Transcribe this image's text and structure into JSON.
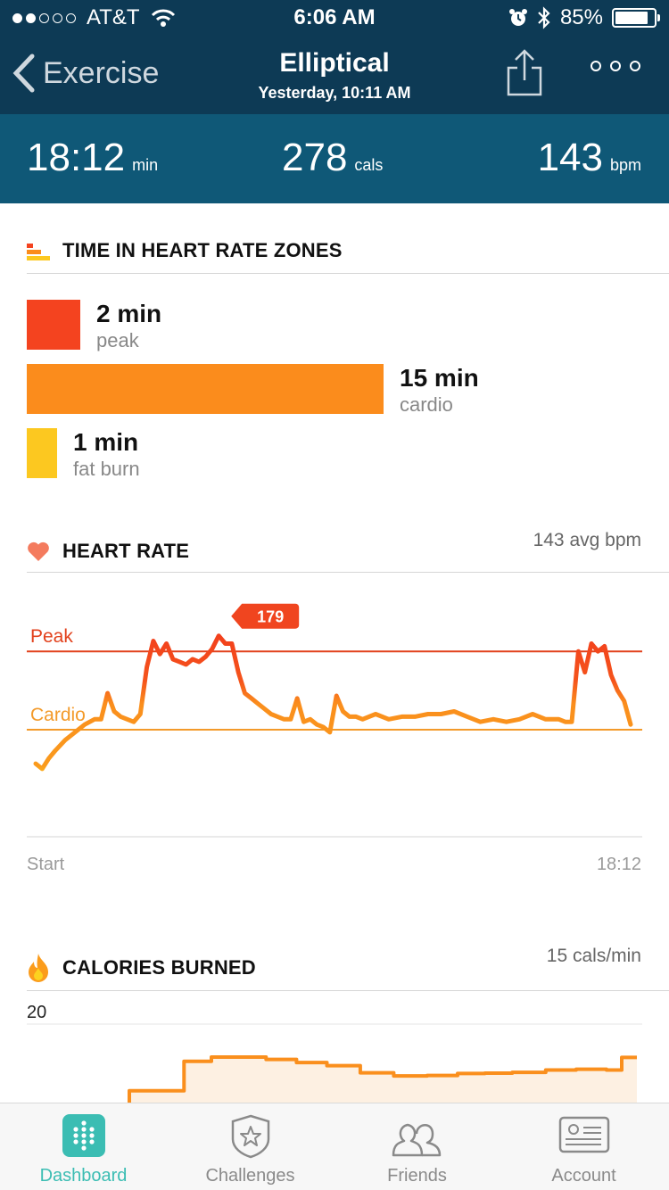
{
  "status_bar": {
    "carrier": "AT&T",
    "time": "6:06 AM",
    "battery": "85%",
    "battery_level": 0.85,
    "signal_bars_filled": 2,
    "signal_bars_total": 5
  },
  "nav": {
    "back_label": "Exercise",
    "title": "Elliptical",
    "subtitle": "Yesterday, 10:11 AM"
  },
  "summary": {
    "duration": {
      "value": "18:12",
      "unit": "min"
    },
    "calories": {
      "value": "278",
      "unit": "cals"
    },
    "heart_rate": {
      "value": "143",
      "unit": "bpm"
    }
  },
  "zones": {
    "title": "TIME IN HEART RATE ZONES",
    "items": [
      {
        "value": "2 min",
        "label": "peak",
        "minutes": 2,
        "color": "#f4431f"
      },
      {
        "value": "15 min",
        "label": "cardio",
        "minutes": 15,
        "color": "#fb8c1c"
      },
      {
        "value": "1 min",
        "label": "fat burn",
        "minutes": 1,
        "color": "#fcc820"
      }
    ]
  },
  "heart_rate": {
    "title": "HEART RATE",
    "avg": "143 avg bpm",
    "peak_label": "Peak",
    "cardio_label": "Cardio",
    "max_callout": "179",
    "x_start": "Start",
    "x_end": "18:12",
    "colors": {
      "peak": "#f23f1c",
      "cardio": "#fa8f1d",
      "fatburn": "#fcd21f"
    }
  },
  "calories": {
    "title": "CALORIES BURNED",
    "rate": "15 cals/min",
    "y_top": "20",
    "color": "#fa8f1d",
    "fill": "#fdf0e2"
  },
  "chart_data": [
    {
      "type": "bar",
      "categories": [
        "peak",
        "cardio",
        "fat burn"
      ],
      "values": [
        2,
        15,
        1
      ]
    },
    {
      "type": "line",
      "ylabel": "",
      "x_range": [
        0,
        18.2
      ],
      "reference_lines": [
        {
          "name": "Peak",
          "y": 171
        },
        {
          "name": "Cardio",
          "y": 141
        }
      ],
      "max_value": 179,
      "x": [
        0,
        0.2,
        0.4,
        0.6,
        0.9,
        1.2,
        1.5,
        1.8,
        2.0,
        2.2,
        2.4,
        2.6,
        2.8,
        3.0,
        3.2,
        3.4,
        3.6,
        3.8,
        4.0,
        4.2,
        4.4,
        4.6,
        4.8,
        5.0,
        5.2,
        5.4,
        5.6,
        5.8,
        6.0,
        6.2,
        6.4,
        6.6,
        6.8,
        7.0,
        7.2,
        7.4,
        7.6,
        7.8,
        8.0,
        8.2,
        8.4,
        8.6,
        8.8,
        9.0,
        9.2,
        9.4,
        9.6,
        9.8,
        10.0,
        10.4,
        10.8,
        11.2,
        11.6,
        12.0,
        12.4,
        12.8,
        13.2,
        13.6,
        14.0,
        14.4,
        14.8,
        15.2,
        15.6,
        16.0,
        16.2,
        16.4,
        16.6,
        16.8,
        17.0,
        17.2,
        17.4,
        17.6,
        17.8,
        18.0,
        18.2
      ],
      "y": [
        128,
        126,
        130,
        133,
        137,
        140,
        143,
        145,
        145,
        155,
        148,
        146,
        145,
        144,
        147,
        165,
        175,
        170,
        174,
        168,
        167,
        166,
        168,
        167,
        169,
        172,
        177,
        174,
        174,
        163,
        155,
        153,
        151,
        149,
        147,
        146,
        145,
        145,
        153,
        144,
        145,
        143,
        142,
        140,
        154,
        148,
        146,
        146,
        145,
        147,
        145,
        146,
        146,
        147,
        147,
        148,
        146,
        144,
        145,
        144,
        145,
        147,
        145,
        145,
        144,
        144,
        171,
        163,
        174,
        171,
        173,
        162,
        156,
        152,
        143
      ]
    },
    {
      "type": "area",
      "ylim": [
        0,
        20
      ],
      "x": [
        0,
        1.5,
        1.5,
        3.3,
        3.3,
        4.2,
        5.2,
        6.0,
        7.0,
        8.0,
        9.1,
        10.2,
        11.3,
        12.3,
        13.2,
        14.1,
        15.2,
        16.2,
        17.2,
        17.7,
        18.2
      ],
      "y": [
        0,
        2.8,
        3.0,
        3.0,
        10.5,
        11.6,
        11.6,
        11.0,
        10.2,
        9.4,
        7.6,
        6.8,
        6.9,
        7.4,
        7.5,
        7.7,
        8.3,
        8.5,
        8.3,
        11.5,
        11.5
      ]
    }
  ],
  "tab_bar": {
    "tabs": [
      {
        "label": "Dashboard",
        "active": true,
        "icon": "dashboard-icon"
      },
      {
        "label": "Challenges",
        "active": false,
        "icon": "challenges-star-icon"
      },
      {
        "label": "Friends",
        "active": false,
        "icon": "friends-icon"
      },
      {
        "label": "Account",
        "active": false,
        "icon": "account-card-icon"
      }
    ],
    "active_color": "#3bbdb3"
  }
}
